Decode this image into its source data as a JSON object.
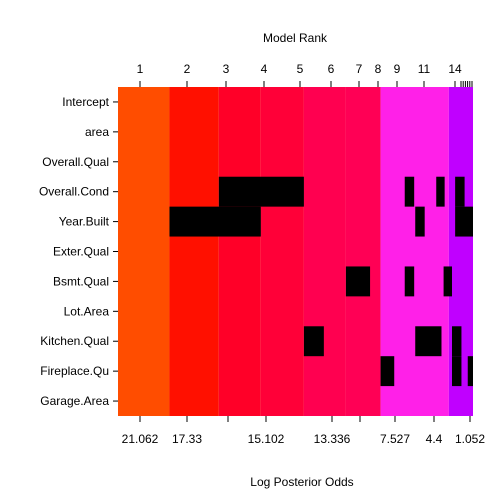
{
  "chart_data": {
    "type": "heatmap",
    "title": "Model Rank",
    "xlabel": "Log Posterior Odds",
    "ylabel": "",
    "variables": [
      "Intercept",
      "area",
      "Overall.Qual",
      "Overall.Cond",
      "Year.Built",
      "Exter.Qual",
      "Bsmt.Qual",
      "Lot.Area",
      "Kitchen.Qual",
      "Fireplace.Qu",
      "Garage.Area"
    ],
    "top_ticks": [
      "1",
      "2",
      "3",
      "4",
      "5",
      "6",
      "7",
      "8",
      "9",
      "11",
      "14"
    ],
    "bottom_ticks": [
      "21.062",
      "17.33",
      "15.102",
      "13.336",
      "7.527",
      "4.4",
      "1.052"
    ],
    "x_range": [
      0,
      33.8
    ],
    "bands": [
      {
        "start": 0.0,
        "end": 4.9,
        "color": "#FF4D00"
      },
      {
        "start": 4.9,
        "end": 9.6,
        "color": "#FF1000"
      },
      {
        "start": 9.6,
        "end": 13.6,
        "color": "#FF0028"
      },
      {
        "start": 13.6,
        "end": 17.7,
        "color": "#FF0038"
      },
      {
        "start": 17.7,
        "end": 21.7,
        "color": "#FF0050"
      },
      {
        "start": 21.7,
        "end": 25.0,
        "color": "#FF0055"
      },
      {
        "start": 25.0,
        "end": 31.5,
        "color": "#FF20E8"
      },
      {
        "start": 31.5,
        "end": 33.8,
        "color": "#C000FF"
      }
    ],
    "excluded": [
      {
        "var": "Overall.Cond",
        "start": 9.6,
        "end": 17.7
      },
      {
        "var": "Overall.Cond",
        "start": 27.3,
        "end": 28.2
      },
      {
        "var": "Overall.Cond",
        "start": 30.3,
        "end": 31.1
      },
      {
        "var": "Overall.Cond",
        "start": 32.1,
        "end": 33.0
      },
      {
        "var": "Year.Built",
        "start": 4.9,
        "end": 13.6
      },
      {
        "var": "Year.Built",
        "start": 28.3,
        "end": 29.2
      },
      {
        "var": "Year.Built",
        "start": 32.1,
        "end": 33.8
      },
      {
        "var": "Bsmt.Qual",
        "start": 21.7,
        "end": 24.0
      },
      {
        "var": "Bsmt.Qual",
        "start": 27.3,
        "end": 28.2
      },
      {
        "var": "Bsmt.Qual",
        "start": 31.0,
        "end": 31.8
      },
      {
        "var": "Kitchen.Qual",
        "start": 17.7,
        "end": 19.6
      },
      {
        "var": "Kitchen.Qual",
        "start": 28.3,
        "end": 30.8
      },
      {
        "var": "Kitchen.Qual",
        "start": 31.8,
        "end": 32.7
      },
      {
        "var": "Fireplace.Qu",
        "start": 25.0,
        "end": 26.3
      },
      {
        "var": "Fireplace.Qu",
        "start": 31.8,
        "end": 32.7
      },
      {
        "var": "Fireplace.Qu",
        "start": 33.3,
        "end": 33.8
      }
    ]
  }
}
